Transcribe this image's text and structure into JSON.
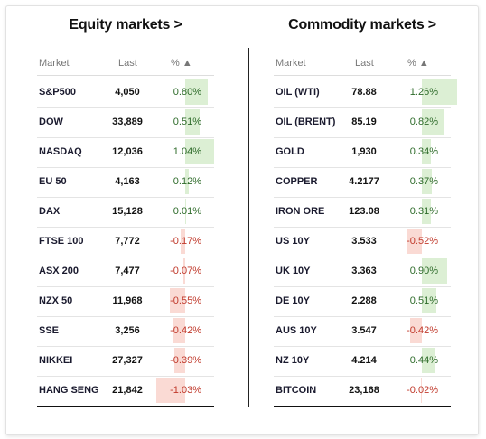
{
  "equity": {
    "title": "Equity markets >",
    "headers": {
      "market": "Market",
      "last": "Last",
      "pct": "% ▲"
    },
    "rows": [
      {
        "name": "S&P500",
        "last": "4,050",
        "pct": "0.80%",
        "value": 0.8
      },
      {
        "name": "DOW",
        "last": "33,889",
        "pct": "0.51%",
        "value": 0.51
      },
      {
        "name": "NASDAQ",
        "last": "12,036",
        "pct": "1.04%",
        "value": 1.04
      },
      {
        "name": "EU 50",
        "last": "4,163",
        "pct": "0.12%",
        "value": 0.12
      },
      {
        "name": "DAX",
        "last": "15,128",
        "pct": "0.01%",
        "value": 0.01
      },
      {
        "name": "FTSE 100",
        "last": "7,772",
        "pct": "-0.17%",
        "value": -0.17
      },
      {
        "name": "ASX 200",
        "last": "7,477",
        "pct": "-0.07%",
        "value": -0.07
      },
      {
        "name": "NZX 50",
        "last": "11,968",
        "pct": "-0.55%",
        "value": -0.55
      },
      {
        "name": "SSE",
        "last": "3,256",
        "pct": "-0.42%",
        "value": -0.42
      },
      {
        "name": "NIKKEI",
        "last": "27,327",
        "pct": "-0.39%",
        "value": -0.39
      },
      {
        "name": "HANG SENG",
        "last": "21,842",
        "pct": "-1.03%",
        "value": -1.03
      }
    ]
  },
  "commodity": {
    "title": "Commodity markets >",
    "headers": {
      "market": "Market",
      "last": "Last",
      "pct": "% ▲"
    },
    "rows": [
      {
        "name": "OIL (WTI)",
        "last": "78.88",
        "pct": "1.26%",
        "value": 1.26
      },
      {
        "name": "OIL (BRENT)",
        "last": "85.19",
        "pct": "0.82%",
        "value": 0.82
      },
      {
        "name": "GOLD",
        "last": "1,930",
        "pct": "0.34%",
        "value": 0.34
      },
      {
        "name": "COPPER",
        "last": "4.2177",
        "pct": "0.37%",
        "value": 0.37
      },
      {
        "name": "IRON ORE",
        "last": "123.08",
        "pct": "0.31%",
        "value": 0.31
      },
      {
        "name": "US 10Y",
        "last": "3.533",
        "pct": "-0.52%",
        "value": -0.52
      },
      {
        "name": "UK 10Y",
        "last": "3.363",
        "pct": "0.90%",
        "value": 0.9
      },
      {
        "name": "DE 10Y",
        "last": "2.288",
        "pct": "0.51%",
        "value": 0.51
      },
      {
        "name": "AUS 10Y",
        "last": "3.547",
        "pct": "-0.42%",
        "value": -0.42
      },
      {
        "name": "NZ 10Y",
        "last": "4.214",
        "pct": "0.44%",
        "value": 0.44
      },
      {
        "name": "BITCOIN",
        "last": "23,168",
        "pct": "-0.02%",
        "value": -0.02
      }
    ]
  },
  "colors": {
    "positive_bar": "#dcefd4",
    "negative_bar": "#fadad4",
    "positive_text": "#2e6b2a",
    "negative_text": "#c0392b"
  }
}
